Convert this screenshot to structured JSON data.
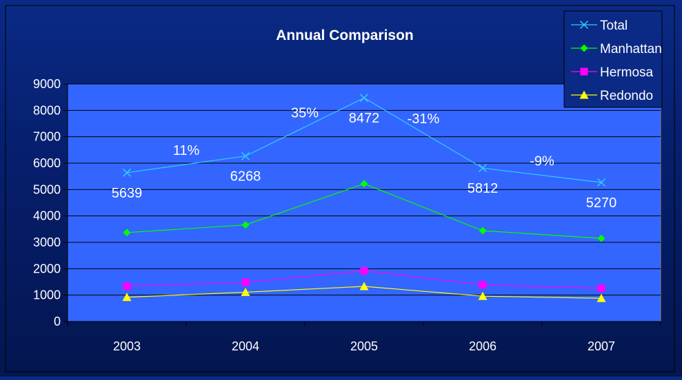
{
  "chart_data": {
    "type": "line",
    "title": "Annual Comparison",
    "categories": [
      "2003",
      "2004",
      "2005",
      "2006",
      "2007"
    ],
    "ylim": [
      0,
      9000
    ],
    "yticks": [
      0,
      1000,
      2000,
      3000,
      4000,
      5000,
      6000,
      7000,
      8000,
      9000
    ],
    "grid": true,
    "legend_position": "top-right",
    "plot_background": "#3366ff",
    "series": [
      {
        "name": "Total",
        "values": [
          5639,
          6268,
          8472,
          5812,
          5270
        ],
        "color": "#33ccff",
        "marker": "x",
        "data_labels": [
          "5639",
          "6268",
          "8472",
          "5812",
          "5270"
        ]
      },
      {
        "name": "Manhattan",
        "values": [
          3370,
          3660,
          5220,
          3440,
          3150
        ],
        "color": "#00ff00",
        "marker": "diamond"
      },
      {
        "name": "Hermosa",
        "values": [
          1340,
          1480,
          1920,
          1390,
          1260
        ],
        "color": "#ff00ff",
        "marker": "square"
      },
      {
        "name": "Redondo",
        "values": [
          920,
          1110,
          1330,
          960,
          880
        ],
        "color": "#ffff00",
        "marker": "triangle"
      }
    ],
    "annotations": [
      {
        "text": "11%",
        "between": [
          0,
          1
        ]
      },
      {
        "text": "35%",
        "between": [
          1,
          2
        ]
      },
      {
        "text": "-31%",
        "between": [
          2,
          3
        ]
      },
      {
        "text": "-9%",
        "between": [
          3,
          4
        ]
      }
    ]
  }
}
